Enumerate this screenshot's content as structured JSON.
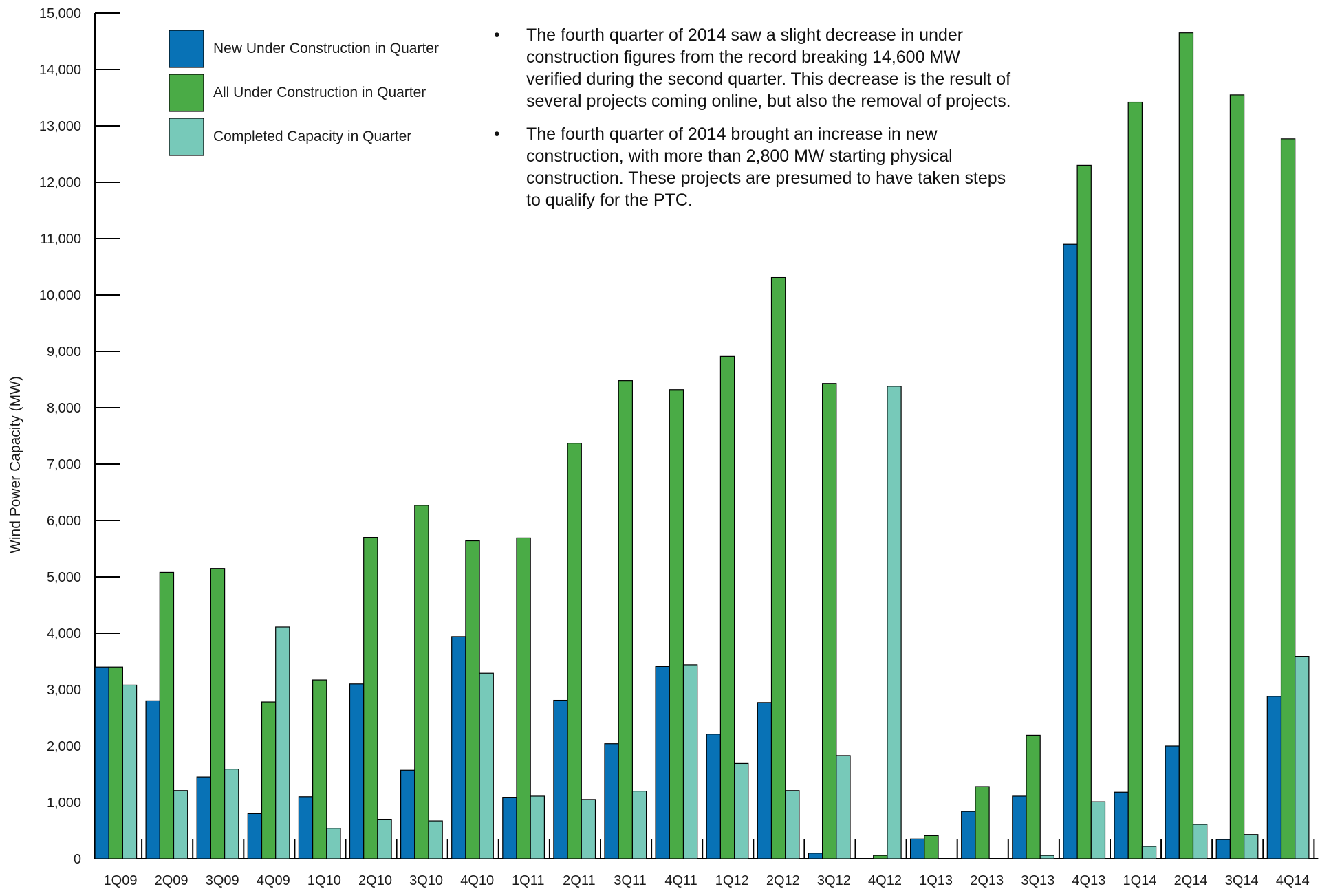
{
  "chart_data": {
    "type": "bar",
    "ylabel": "Wind Power Capacity (MW)",
    "ylim": [
      0,
      15000
    ],
    "yticks": [
      0,
      1000,
      2000,
      3000,
      4000,
      5000,
      6000,
      7000,
      8000,
      9000,
      10000,
      11000,
      12000,
      13000,
      14000,
      15000
    ],
    "ytick_labels": [
      "0",
      "1,000",
      "2,000",
      "3,000",
      "4,000",
      "5,000",
      "6,000",
      "7,000",
      "8,000",
      "9,000",
      "10,000",
      "11,000",
      "12,000",
      "13,000",
      "14,000",
      "15,000"
    ],
    "grid": false,
    "legend_position": "top-left",
    "categories": [
      "1Q09",
      "2Q09",
      "3Q09",
      "4Q09",
      "1Q10",
      "2Q10",
      "3Q10",
      "4Q10",
      "1Q11",
      "2Q11",
      "3Q11",
      "4Q11",
      "1Q12",
      "2Q12",
      "3Q12",
      "4Q12",
      "1Q13",
      "2Q13",
      "3Q13",
      "4Q13",
      "1Q14",
      "2Q14",
      "3Q14",
      "4Q14"
    ],
    "series": [
      {
        "name": "New Under Construction in Quarter",
        "color": "#0872b6",
        "values": [
          3400,
          2800,
          1450,
          800,
          1100,
          3100,
          1570,
          3940,
          1090,
          2810,
          2040,
          3410,
          2210,
          2770,
          100,
          0,
          350,
          840,
          1110,
          10900,
          1180,
          2000,
          340,
          2880
        ]
      },
      {
        "name": "All Under Construction in Quarter",
        "color": "#4aab46",
        "values": [
          3400,
          5080,
          5150,
          2780,
          3170,
          5700,
          6270,
          5640,
          5690,
          7370,
          8480,
          8320,
          8910,
          10310,
          8430,
          60,
          410,
          1280,
          2190,
          12300,
          13420,
          14650,
          13550,
          12770
        ]
      },
      {
        "name": "Completed Capacity in Quarter",
        "color": "#77c9b9",
        "values": [
          3080,
          1210,
          1590,
          4110,
          540,
          700,
          670,
          3290,
          1110,
          1050,
          1200,
          3440,
          1690,
          1210,
          1830,
          8380,
          0,
          0,
          60,
          1010,
          220,
          610,
          430,
          3590
        ]
      }
    ],
    "annotations": [
      "The fourth quarter of 2014 saw a slight decrease in under construction figures from the record breaking 14,600 MW verified during the second quarter. This decrease is the result of several projects coming online, but also the removal of projects.",
      "The fourth quarter of 2014 brought an increase in new construction, with more than 2,800 MW starting physical construction. These projects are presumed to have taken steps to qualify for the PTC."
    ]
  },
  "notes": {
    "bullet": "•",
    "note1_lines": [
      "The fourth quarter of 2014 saw a slight decrease in under",
      "construction figures from the record breaking 14,600 MW",
      "verified during the second quarter. This decrease is the result of",
      "several projects coming online, but also the removal of projects."
    ],
    "note2_lines": [
      "The fourth quarter of 2014 brought an increase in new",
      "construction, with more than 2,800 MW starting physical",
      "construction. These projects are presumed to have taken steps",
      "to qualify for the PTC."
    ]
  }
}
